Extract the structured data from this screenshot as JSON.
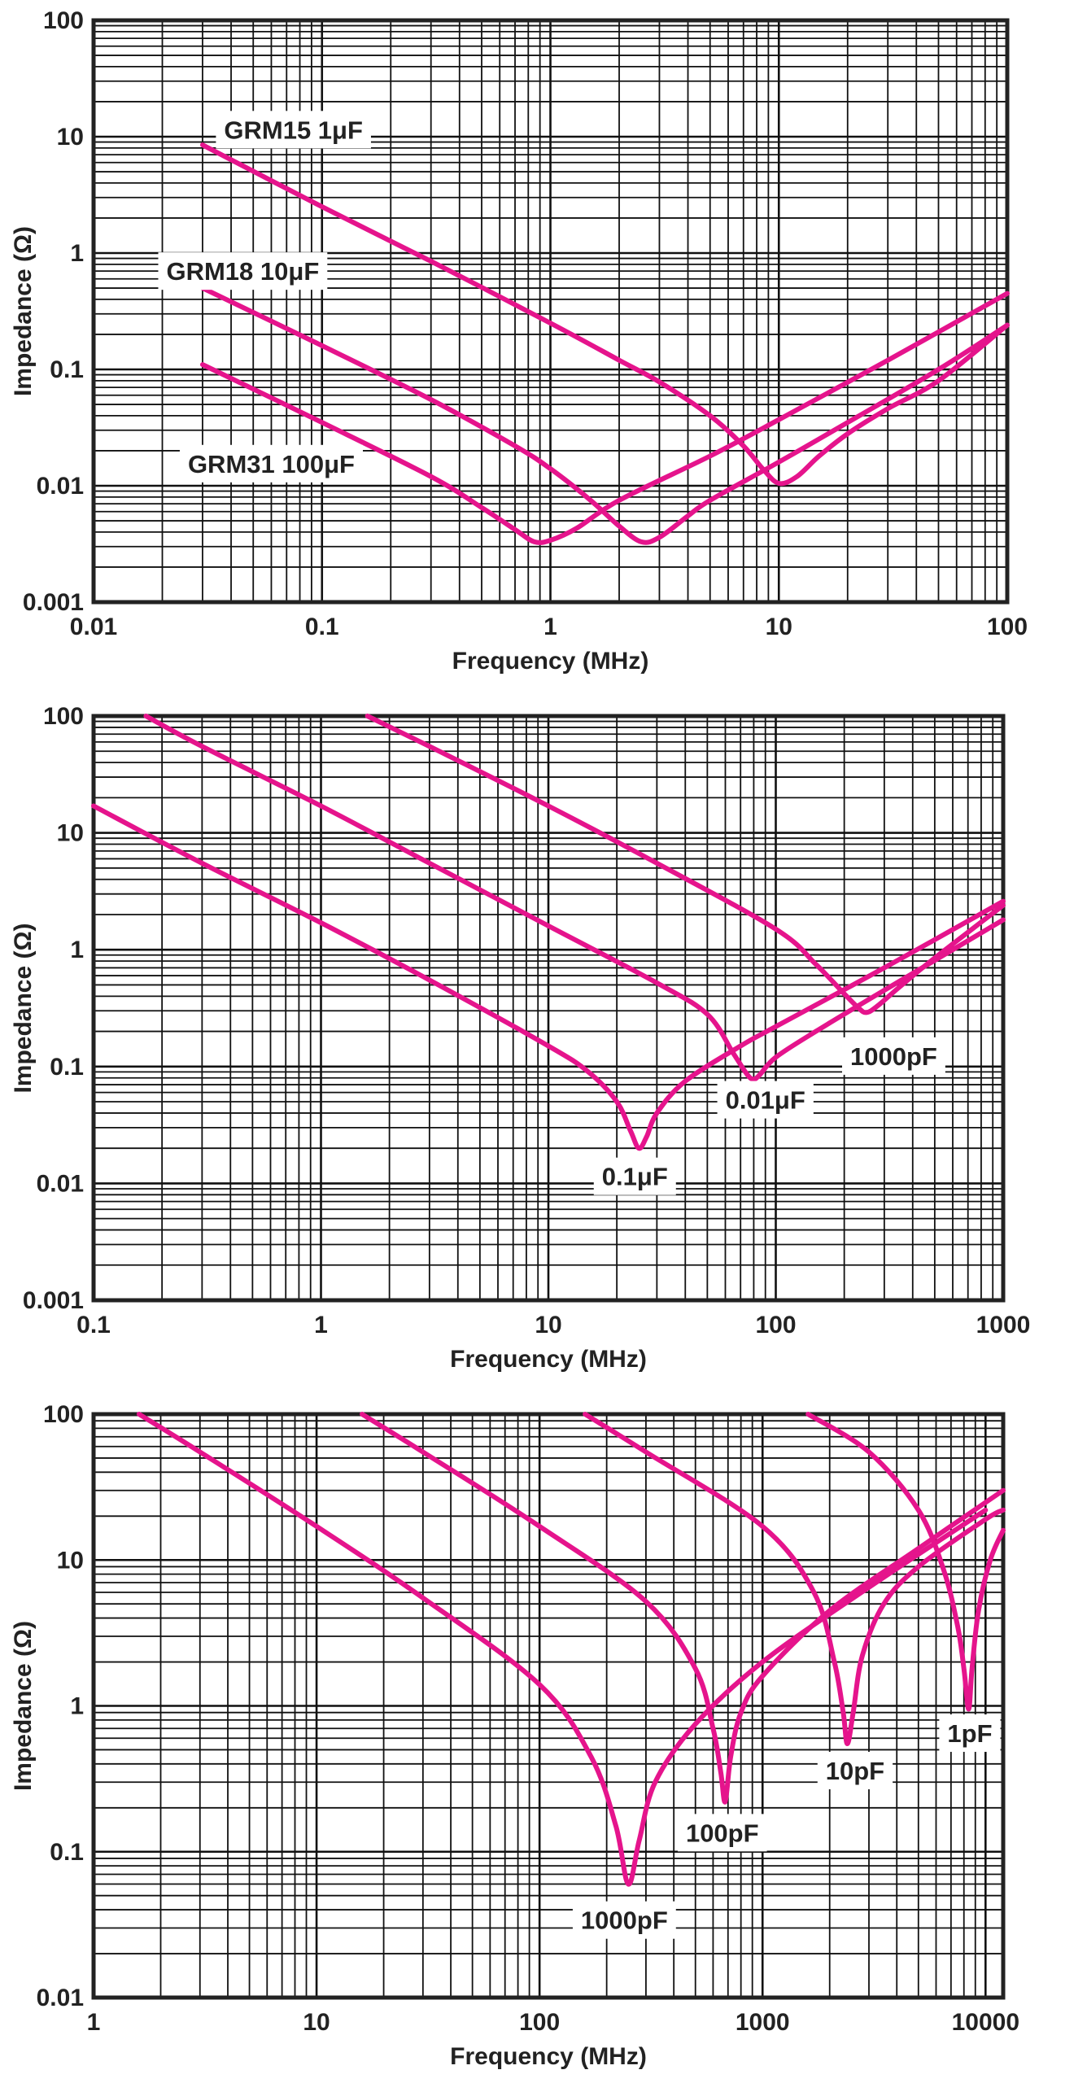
{
  "colors": {
    "curve": "#e5148c",
    "grid": "#111111",
    "frame": "#222222",
    "text": "#222222",
    "label_bg": "#ffffff"
  },
  "chart_data": [
    {
      "type": "line",
      "title": "",
      "xlabel": "Frequency (MHz)",
      "ylabel": "Impedance (Ω)",
      "xscale": "log",
      "yscale": "log",
      "xlim": [
        0.01,
        100
      ],
      "ylim": [
        0.001,
        100
      ],
      "xticklabels": [
        "0.01",
        "0.1",
        "1",
        "10",
        "100"
      ],
      "yticklabels": [
        "0.001",
        "0.01",
        "0.1",
        "1",
        "10",
        "100"
      ],
      "grid": true,
      "series": [
        {
          "name": "GRM15 1μF",
          "x": [
            0.03,
            0.1,
            0.3,
            1,
            2,
            3,
            5,
            7,
            8.5,
            10,
            12,
            15,
            20,
            30,
            50,
            100
          ],
          "y": [
            8.5,
            2.5,
            0.85,
            0.25,
            0.12,
            0.078,
            0.04,
            0.022,
            0.014,
            0.0105,
            0.012,
            0.018,
            0.028,
            0.046,
            0.08,
            0.24
          ]
        },
        {
          "name": "GRM18 10μF",
          "x": [
            0.03,
            0.1,
            0.3,
            0.7,
            1,
            1.5,
            2,
            2.5,
            3,
            4,
            5,
            10,
            20,
            50,
            100
          ],
          "y": [
            0.5,
            0.16,
            0.055,
            0.022,
            0.014,
            0.0075,
            0.0045,
            0.0033,
            0.0036,
            0.0055,
            0.0075,
            0.016,
            0.035,
            0.1,
            0.24
          ]
        },
        {
          "name": "GRM31 100μF",
          "x": [
            0.03,
            0.1,
            0.3,
            0.5,
            0.7,
            0.85,
            1,
            1.3,
            2,
            5,
            10,
            30,
            100
          ],
          "y": [
            0.11,
            0.035,
            0.012,
            0.0065,
            0.0042,
            0.0033,
            0.0034,
            0.0043,
            0.0075,
            0.018,
            0.037,
            0.12,
            0.45
          ]
        }
      ],
      "annotations": [
        {
          "text": "GRM15 1μF",
          "x": 0.075,
          "y": 11.5
        },
        {
          "text": "GRM18 10μF",
          "x": 0.045,
          "y": 0.7
        },
        {
          "text": "GRM31 100μF",
          "x": 0.06,
          "y": 0.0155
        }
      ]
    },
    {
      "type": "line",
      "title": "",
      "xlabel": "Frequency (MHz)",
      "ylabel": "Impedance (Ω)",
      "xscale": "log",
      "yscale": "log",
      "xlim": [
        0.1,
        1000
      ],
      "ylim": [
        0.001,
        100
      ],
      "xticklabels": [
        "0.1",
        "1",
        "10",
        "100",
        "1000"
      ],
      "yticklabels": [
        "0.001",
        "0.01",
        "0.1",
        "1",
        "10",
        "100"
      ],
      "grid": true,
      "series": [
        {
          "name": "0.1μF",
          "x": [
            0.1,
            0.3,
            1,
            3,
            10,
            15,
            20,
            23,
            25,
            27,
            30,
            40,
            70,
            100,
            300,
            1000
          ],
          "y": [
            17,
            5.5,
            1.7,
            0.55,
            0.15,
            0.09,
            0.05,
            0.028,
            0.02,
            0.025,
            0.04,
            0.075,
            0.15,
            0.22,
            0.7,
            2.6
          ]
        },
        {
          "name": "0.01μF",
          "x": [
            0.17,
            0.3,
            1,
            3,
            10,
            30,
            50,
            65,
            75,
            80,
            85,
            100,
            150,
            300,
            1000
          ],
          "y": [
            100,
            55,
            17,
            5.5,
            1.6,
            0.52,
            0.28,
            0.13,
            0.085,
            0.078,
            0.085,
            0.12,
            0.2,
            0.45,
            1.8
          ]
        },
        {
          "name": "1000pF",
          "x": [
            1.6,
            3,
            10,
            30,
            100,
            150,
            200,
            230,
            250,
            280,
            350,
            500,
            1000
          ],
          "y": [
            100,
            55,
            17,
            5.5,
            1.5,
            0.75,
            0.42,
            0.32,
            0.29,
            0.33,
            0.48,
            0.85,
            2.4
          ]
        }
      ],
      "annotations": [
        {
          "text": "0.1μF",
          "x": 24,
          "y": 0.0115
        },
        {
          "text": "0.01μF",
          "x": 90,
          "y": 0.052
        },
        {
          "text": "1000pF",
          "x": 330,
          "y": 0.123
        }
      ]
    },
    {
      "type": "line",
      "title": "",
      "xlabel": "Frequency (MHz)",
      "ylabel": "Impedance (Ω)",
      "xscale": "log",
      "yscale": "log",
      "xlim": [
        1,
        12000
      ],
      "ylim": [
        0.01,
        100
      ],
      "xticklabels": [
        "1",
        "10",
        "100",
        "1000",
        "10000"
      ],
      "yticklabels": [
        "0.01",
        "0.1",
        "1",
        "10",
        "100"
      ],
      "grid": true,
      "series": [
        {
          "name": "1000pF",
          "x": [
            1.6,
            3,
            10,
            30,
            100,
            170,
            220,
            250,
            280,
            330,
            500,
            1000,
            3000,
            10000
          ],
          "y": [
            100,
            55,
            17,
            5.5,
            1.4,
            0.45,
            0.15,
            0.06,
            0.12,
            0.3,
            0.75,
            2.0,
            6.5,
            22
          ]
        },
        {
          "name": "100pF",
          "x": [
            16,
            30,
            100,
            300,
            500,
            600,
            650,
            680,
            720,
            800,
            1000,
            2000,
            5000,
            12000
          ],
          "y": [
            100,
            55,
            17,
            5.2,
            1.8,
            0.7,
            0.35,
            0.22,
            0.45,
            0.9,
            1.6,
            4.5,
            12,
            30
          ]
        },
        {
          "name": "10pF",
          "x": [
            160,
            300,
            1000,
            1700,
            2100,
            2300,
            2400,
            2550,
            2800,
            3500,
            5000,
            10000,
            12000
          ],
          "y": [
            100,
            55,
            17,
            6,
            2,
            0.9,
            0.55,
            0.9,
            2.2,
            5,
            9,
            19,
            22
          ]
        },
        {
          "name": "1pF",
          "x": [
            1600,
            3000,
            5000,
            6500,
            7500,
            8000,
            8400,
            8700,
            9300,
            10500,
            12000
          ],
          "y": [
            100,
            55,
            22,
            8.5,
            3.5,
            1.8,
            0.95,
            1.8,
            4.5,
            10,
            16
          ]
        }
      ],
      "annotations": [
        {
          "text": "1000pF",
          "x": 240,
          "y": 0.034
        },
        {
          "text": "100pF",
          "x": 660,
          "y": 0.135
        },
        {
          "text": "10pF",
          "x": 2600,
          "y": 0.36
        },
        {
          "text": "1pF",
          "x": 8500,
          "y": 0.65
        }
      ]
    }
  ]
}
